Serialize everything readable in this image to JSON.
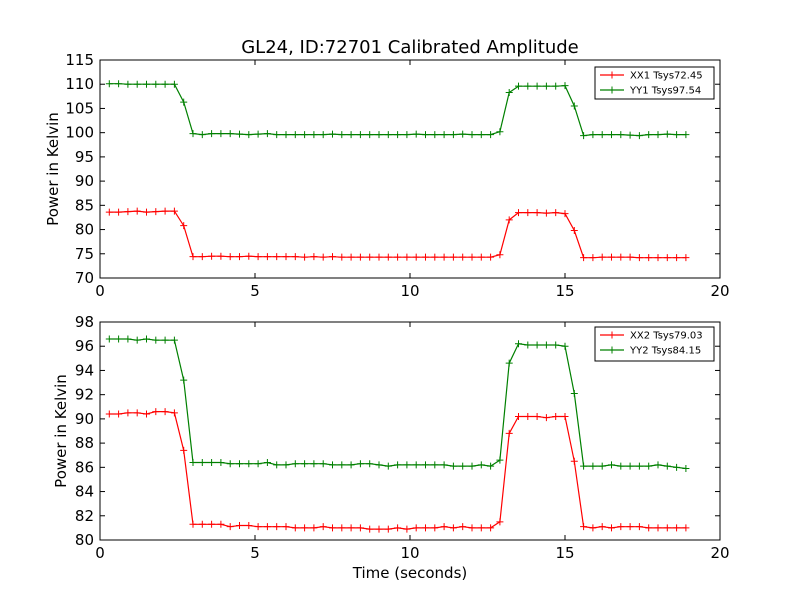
{
  "chart_data": [
    {
      "type": "line",
      "title": "GL24, ID:72701 Calibrated Amplitude",
      "xlabel": "",
      "ylabel": "Power in Kelvin",
      "xlim": [
        0,
        20
      ],
      "ylim": [
        70,
        115
      ],
      "xticks": [
        0,
        5,
        10,
        15,
        20
      ],
      "yticks": [
        70,
        75,
        80,
        85,
        90,
        95,
        100,
        105,
        110,
        115
      ],
      "legend_position": "top-right",
      "grid": false,
      "x": [
        0.3,
        0.6,
        0.9,
        1.2,
        1.5,
        1.8,
        2.1,
        2.4,
        2.7,
        3.0,
        3.3,
        3.6,
        3.9,
        4.2,
        4.5,
        4.8,
        5.1,
        5.4,
        5.7,
        6.0,
        6.3,
        6.6,
        6.9,
        7.2,
        7.5,
        7.8,
        8.1,
        8.4,
        8.7,
        9.0,
        9.3,
        9.6,
        9.9,
        10.2,
        10.5,
        10.8,
        11.1,
        11.4,
        11.7,
        12.0,
        12.3,
        12.6,
        12.9,
        13.2,
        13.5,
        13.8,
        14.1,
        14.4,
        14.7,
        15.0,
        15.3,
        15.6,
        15.9,
        16.2,
        16.5,
        16.8,
        17.1,
        17.4,
        17.7,
        18.0,
        18.3,
        18.6,
        18.9
      ],
      "series": [
        {
          "name": "XX1 Tsys72.45",
          "color": "#ff0000",
          "values": [
            83.6,
            83.6,
            83.7,
            83.8,
            83.6,
            83.7,
            83.8,
            83.8,
            80.8,
            74.4,
            74.4,
            74.5,
            74.5,
            74.4,
            74.4,
            74.5,
            74.4,
            74.4,
            74.4,
            74.4,
            74.4,
            74.3,
            74.4,
            74.3,
            74.4,
            74.3,
            74.3,
            74.3,
            74.3,
            74.3,
            74.3,
            74.3,
            74.3,
            74.3,
            74.3,
            74.3,
            74.3,
            74.3,
            74.3,
            74.3,
            74.3,
            74.3,
            74.8,
            82.0,
            83.5,
            83.5,
            83.5,
            83.4,
            83.5,
            83.3,
            79.8,
            74.2,
            74.2,
            74.3,
            74.3,
            74.3,
            74.3,
            74.2,
            74.2,
            74.2,
            74.2,
            74.2,
            74.2
          ]
        },
        {
          "name": "YY1 Tsys97.54",
          "color": "#008000",
          "values": [
            110.1,
            110.1,
            110.0,
            110.0,
            110.0,
            110.0,
            110.0,
            110.0,
            106.3,
            99.8,
            99.6,
            99.8,
            99.8,
            99.8,
            99.7,
            99.6,
            99.7,
            99.8,
            99.6,
            99.6,
            99.6,
            99.6,
            99.6,
            99.6,
            99.7,
            99.6,
            99.6,
            99.6,
            99.6,
            99.6,
            99.6,
            99.6,
            99.6,
            99.7,
            99.6,
            99.6,
            99.6,
            99.6,
            99.7,
            99.6,
            99.6,
            99.6,
            100.2,
            108.3,
            109.6,
            109.6,
            109.6,
            109.6,
            109.6,
            109.7,
            105.5,
            99.4,
            99.6,
            99.6,
            99.6,
            99.6,
            99.5,
            99.4,
            99.6,
            99.6,
            99.7,
            99.6,
            99.6
          ]
        }
      ]
    },
    {
      "type": "line",
      "title": "",
      "xlabel": "Time (seconds)",
      "ylabel": "Power in Kelvin",
      "xlim": [
        0,
        20
      ],
      "ylim": [
        80,
        98
      ],
      "xticks": [
        0,
        5,
        10,
        15,
        20
      ],
      "yticks": [
        80,
        82,
        84,
        86,
        88,
        90,
        92,
        94,
        96,
        98
      ],
      "legend_position": "top-right",
      "grid": false,
      "x": [
        0.3,
        0.6,
        0.9,
        1.2,
        1.5,
        1.8,
        2.1,
        2.4,
        2.7,
        3.0,
        3.3,
        3.6,
        3.9,
        4.2,
        4.5,
        4.8,
        5.1,
        5.4,
        5.7,
        6.0,
        6.3,
        6.6,
        6.9,
        7.2,
        7.5,
        7.8,
        8.1,
        8.4,
        8.7,
        9.0,
        9.3,
        9.6,
        9.9,
        10.2,
        10.5,
        10.8,
        11.1,
        11.4,
        11.7,
        12.0,
        12.3,
        12.6,
        12.9,
        13.2,
        13.5,
        13.8,
        14.1,
        14.4,
        14.7,
        15.0,
        15.3,
        15.6,
        15.9,
        16.2,
        16.5,
        16.8,
        17.1,
        17.4,
        17.7,
        18.0,
        18.3,
        18.6,
        18.9
      ],
      "series": [
        {
          "name": "XX2 Tsys79.03",
          "color": "#ff0000",
          "values": [
            90.4,
            90.4,
            90.5,
            90.5,
            90.4,
            90.6,
            90.6,
            90.5,
            87.4,
            81.3,
            81.3,
            81.3,
            81.3,
            81.1,
            81.2,
            81.2,
            81.1,
            81.1,
            81.1,
            81.1,
            81.0,
            81.0,
            81.0,
            81.1,
            81.0,
            81.0,
            81.0,
            81.0,
            80.9,
            80.9,
            80.9,
            81.0,
            80.9,
            81.0,
            81.0,
            81.0,
            81.1,
            81.0,
            81.1,
            81.0,
            81.0,
            81.0,
            81.5,
            88.8,
            90.2,
            90.2,
            90.2,
            90.1,
            90.2,
            90.2,
            86.5,
            81.1,
            81.0,
            81.1,
            81.0,
            81.1,
            81.1,
            81.1,
            81.0,
            81.0,
            81.0,
            81.0,
            81.0
          ]
        },
        {
          "name": "YY2 Tsys84.15",
          "color": "#008000",
          "values": [
            96.6,
            96.6,
            96.6,
            96.5,
            96.6,
            96.5,
            96.5,
            96.5,
            93.2,
            86.4,
            86.4,
            86.4,
            86.4,
            86.3,
            86.3,
            86.3,
            86.3,
            86.4,
            86.2,
            86.2,
            86.3,
            86.3,
            86.3,
            86.3,
            86.2,
            86.2,
            86.2,
            86.3,
            86.3,
            86.2,
            86.1,
            86.2,
            86.2,
            86.2,
            86.2,
            86.2,
            86.2,
            86.1,
            86.1,
            86.1,
            86.2,
            86.1,
            86.6,
            94.6,
            96.2,
            96.1,
            96.1,
            96.1,
            96.1,
            96.0,
            92.1,
            86.1,
            86.1,
            86.1,
            86.2,
            86.1,
            86.1,
            86.1,
            86.1,
            86.2,
            86.1,
            86.0,
            85.9
          ]
        }
      ]
    }
  ]
}
